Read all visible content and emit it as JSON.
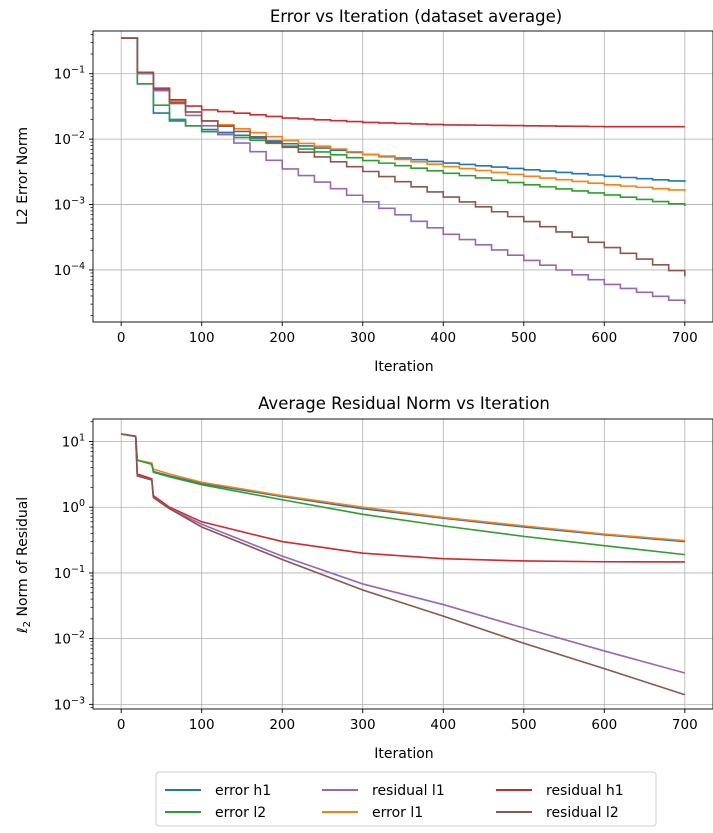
{
  "legend": {
    "ncol": 3,
    "placement": "bottom-center, below both panels",
    "entries": [
      {
        "label": "error h1",
        "color": "#1f77b4"
      },
      {
        "label": "error l2",
        "color": "#2ca02c"
      },
      {
        "label": "residual l1",
        "color": "#9467bd"
      },
      {
        "label": "error l1",
        "color": "#ff7f0e"
      },
      {
        "label": "residual h1",
        "color": "#d62728"
      },
      {
        "label": "residual l2",
        "color": "#8c564b"
      }
    ]
  },
  "chart_data": [
    {
      "type": "line",
      "title": "Error vs Iteration (dataset average)",
      "xlabel": "Iteration",
      "ylabel": "L2 Error Norm",
      "yscale": "log",
      "grid": true,
      "xlim": [
        -35,
        735
      ],
      "ylim": [
        1.6e-05,
        0.45
      ],
      "xticks": [
        0,
        100,
        200,
        300,
        400,
        500,
        600,
        700
      ],
      "xticklabels": [
        "0",
        "100",
        "200",
        "300",
        "400",
        "500",
        "600",
        "700"
      ],
      "yticks": [
        0.0001,
        0.001,
        0.01,
        0.1
      ],
      "yticklabels": [
        "10^-4",
        "10^-3",
        "10^-2",
        "10^-1"
      ],
      "series": [
        {
          "name": "error h1",
          "color": "#1f77b4",
          "step": true,
          "x": [
            0,
            20,
            40,
            60,
            80,
            100,
            200,
            300,
            400,
            500,
            600,
            700
          ],
          "y": [
            0.35,
            0.07,
            0.025,
            0.019,
            0.016,
            0.014,
            0.0085,
            0.0058,
            0.0043,
            0.0034,
            0.0027,
            0.0022
          ]
        },
        {
          "name": "error l1",
          "color": "#ff7f0e",
          "step": true,
          "x": [
            0,
            20,
            40,
            60,
            80,
            100,
            200,
            300,
            400,
            500,
            600,
            700
          ],
          "y": [
            0.35,
            0.1,
            0.058,
            0.038,
            0.026,
            0.019,
            0.0095,
            0.0058,
            0.0038,
            0.0027,
            0.002,
            0.0016
          ]
        },
        {
          "name": "error l2",
          "color": "#2ca02c",
          "step": true,
          "x": [
            0,
            20,
            40,
            60,
            80,
            100,
            200,
            300,
            400,
            500,
            600,
            700
          ],
          "y": [
            0.35,
            0.07,
            0.033,
            0.02,
            0.016,
            0.013,
            0.0078,
            0.0047,
            0.003,
            0.002,
            0.0014,
            0.00095
          ]
        },
        {
          "name": "residual h1",
          "color": "#d62728",
          "step": true,
          "x": [
            0,
            20,
            40,
            60,
            80,
            100,
            200,
            300,
            400,
            500,
            600,
            700
          ],
          "y": [
            0.35,
            0.1,
            0.06,
            0.04,
            0.032,
            0.028,
            0.021,
            0.018,
            0.0165,
            0.016,
            0.0155,
            0.0155
          ]
        },
        {
          "name": "residual l1",
          "color": "#9467bd",
          "step": true,
          "x": [
            0,
            20,
            40,
            60,
            80,
            100,
            200,
            300,
            400,
            500,
            600,
            700
          ],
          "y": [
            0.35,
            0.1,
            0.055,
            0.035,
            0.023,
            0.016,
            0.0035,
            0.0011,
            0.00035,
            0.00014,
            6e-05,
            3e-05
          ]
        },
        {
          "name": "residual l2",
          "color": "#8c564b",
          "step": true,
          "x": [
            0,
            20,
            40,
            60,
            80,
            100,
            200,
            300,
            400,
            500,
            600,
            700
          ],
          "y": [
            0.35,
            0.105,
            0.058,
            0.036,
            0.026,
            0.019,
            0.0075,
            0.0032,
            0.0013,
            0.00055,
            0.00022,
            8e-05
          ]
        }
      ]
    },
    {
      "type": "line",
      "title": "Average Residual Norm vs Iteration",
      "xlabel": "Iteration",
      "ylabel": "ℓ2 Norm of Residual",
      "yscale": "log",
      "grid": true,
      "xlim": [
        -35,
        735
      ],
      "ylim": [
        0.00085,
        22
      ],
      "xticks": [
        0,
        100,
        200,
        300,
        400,
        500,
        600,
        700
      ],
      "xticklabels": [
        "0",
        "100",
        "200",
        "300",
        "400",
        "500",
        "600",
        "700"
      ],
      "yticks": [
        0.001,
        0.01,
        0.1,
        1,
        10
      ],
      "yticklabels": [
        "10^-3",
        "10^-2",
        "10^-1",
        "10^0",
        "10^1"
      ],
      "series": [
        {
          "name": "error h1",
          "color": "#1f77b4",
          "step": false,
          "x": [
            0,
            18,
            20,
            38,
            40,
            60,
            100,
            200,
            300,
            400,
            500,
            600,
            700
          ],
          "y": [
            13,
            12,
            5.2,
            4.5,
            3.5,
            3.0,
            2.3,
            1.45,
            0.95,
            0.68,
            0.5,
            0.38,
            0.3
          ]
        },
        {
          "name": "error l1",
          "color": "#ff7f0e",
          "step": false,
          "x": [
            0,
            18,
            20,
            38,
            40,
            60,
            100,
            200,
            300,
            400,
            500,
            600,
            700
          ],
          "y": [
            13,
            12,
            5.2,
            4.7,
            3.8,
            3.2,
            2.4,
            1.5,
            1.0,
            0.7,
            0.52,
            0.39,
            0.31
          ]
        },
        {
          "name": "error l2",
          "color": "#2ca02c",
          "step": false,
          "x": [
            0,
            18,
            20,
            38,
            40,
            60,
            100,
            200,
            300,
            400,
            500,
            600,
            700
          ],
          "y": [
            13,
            12,
            5.2,
            4.5,
            3.4,
            2.9,
            2.2,
            1.3,
            0.78,
            0.52,
            0.36,
            0.26,
            0.19
          ]
        },
        {
          "name": "residual h1",
          "color": "#d62728",
          "step": false,
          "x": [
            0,
            18,
            20,
            38,
            40,
            60,
            100,
            200,
            300,
            400,
            500,
            600,
            700
          ],
          "y": [
            13,
            12,
            3.2,
            2.7,
            1.5,
            1.0,
            0.6,
            0.3,
            0.2,
            0.165,
            0.152,
            0.148,
            0.147
          ]
        },
        {
          "name": "residual l1",
          "color": "#9467bd",
          "step": false,
          "x": [
            0,
            18,
            20,
            38,
            40,
            60,
            100,
            200,
            300,
            400,
            500,
            600,
            700
          ],
          "y": [
            13,
            12,
            3.0,
            2.6,
            1.4,
            0.95,
            0.55,
            0.18,
            0.068,
            0.033,
            0.0145,
            0.0065,
            0.003
          ]
        },
        {
          "name": "residual l2",
          "color": "#8c564b",
          "step": false,
          "x": [
            0,
            18,
            20,
            38,
            40,
            60,
            100,
            200,
            300,
            400,
            500,
            600,
            700
          ],
          "y": [
            13,
            12,
            3.0,
            2.6,
            1.4,
            0.95,
            0.5,
            0.16,
            0.055,
            0.022,
            0.0085,
            0.0035,
            0.0014
          ]
        }
      ]
    }
  ]
}
